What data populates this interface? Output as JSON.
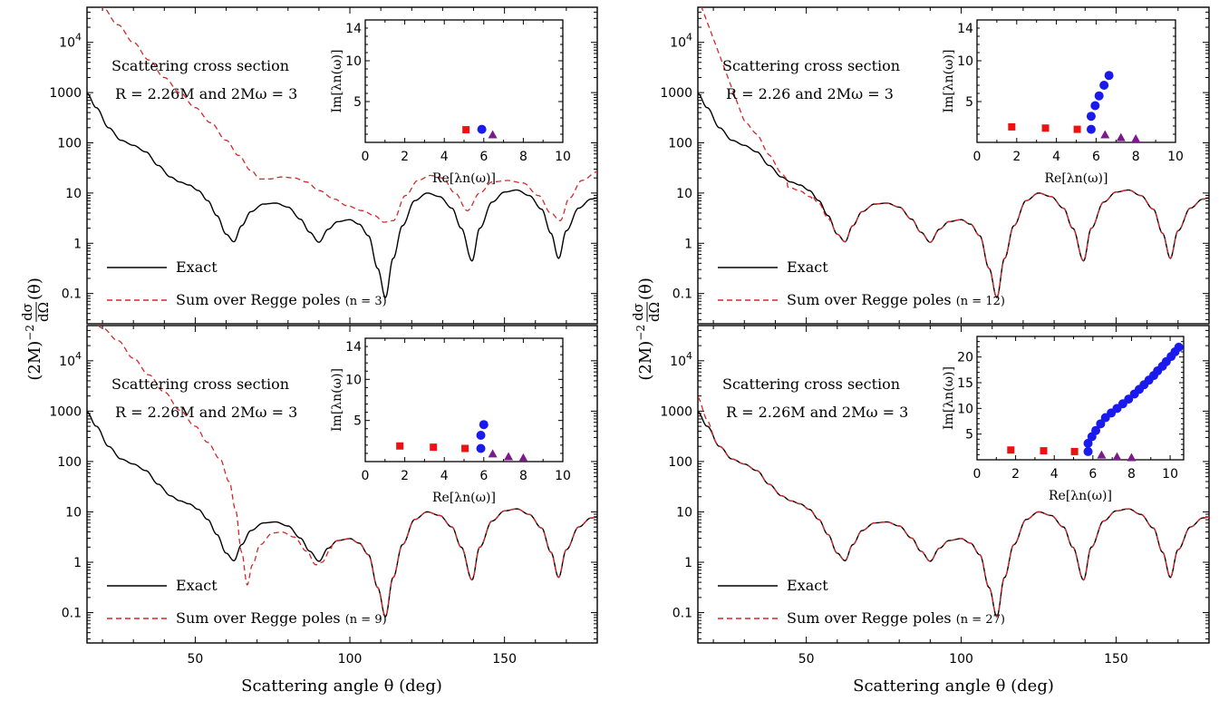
{
  "figure": {
    "xlabel": "Scattering angle θ (deg)",
    "ylabel_prefix": "(2M)",
    "ylabel_exp": "−2",
    "ylabel_num": "dσ",
    "ylabel_den": "dΩ",
    "ylabel_suffix": "(θ)"
  },
  "chart_data": [
    {
      "type": "line",
      "annotation_line1": "Scattering cross section",
      "annotation_line2": "R = 2.26M and 2Mω = 3",
      "x_range": [
        15,
        180
      ],
      "y_range": [
        0.025,
        50000
      ],
      "y_scale": "log",
      "x_ticks": [
        50,
        100,
        150
      ],
      "y_ticks": [
        "0.1",
        "1",
        "10",
        "100",
        "1000",
        "10^4"
      ],
      "legend_position": "bottom-left",
      "series": [
        {
          "name": "Exact",
          "style": "solid",
          "color": "#000000"
        },
        {
          "name": "Sum over Regge poles (n = 3)",
          "style": "dashed",
          "color": "#d62728",
          "regge_n": 3
        }
      ],
      "inset": {
        "type": "scatter",
        "xlabel": "Re[λn(ω)]",
        "ylabel": "Im[λn(ω)]",
        "x_range": [
          0,
          10
        ],
        "y_range": [
          0,
          15
        ],
        "x_ticks": [
          0,
          2,
          4,
          6,
          8,
          10
        ],
        "y_ticks": [
          5,
          10,
          14
        ],
        "series": [
          {
            "marker": "square",
            "color": "#ee1111",
            "points": [
              [
                5.1,
                1.55
              ]
            ]
          },
          {
            "marker": "circle",
            "color": "#1a1aee",
            "points": [
              [
                5.9,
                1.6
              ]
            ]
          },
          {
            "marker": "triangle",
            "color": "#7b1a8a",
            "points": [
              [
                6.45,
                0.95
              ]
            ]
          }
        ]
      }
    },
    {
      "type": "line",
      "annotation_line1": "Scattering cross section",
      "annotation_line2": "R = 2.26 and 2Mω = 3",
      "x_range": [
        15,
        180
      ],
      "y_range": [
        0.025,
        50000
      ],
      "y_scale": "log",
      "x_ticks": [
        50,
        100,
        150
      ],
      "y_ticks": [
        "0.1",
        "1",
        "10",
        "100",
        "1000",
        "10^4"
      ],
      "legend_position": "bottom-left",
      "series": [
        {
          "name": "Exact",
          "style": "solid",
          "color": "#000000"
        },
        {
          "name": "Sum over Regge poles (n = 12)",
          "style": "dashed",
          "color": "#d62728",
          "regge_n": 12
        }
      ],
      "inset": {
        "type": "scatter",
        "xlabel": "Re[λn(ω)]",
        "ylabel": "Im[λn(ω)]",
        "x_range": [
          0,
          10
        ],
        "y_range": [
          0,
          15
        ],
        "x_ticks": [
          0,
          2,
          4,
          6,
          8,
          10
        ],
        "y_ticks": [
          5,
          10,
          14
        ],
        "series": [
          {
            "marker": "square",
            "color": "#ee1111",
            "points": [
              [
                1.75,
                1.9
              ],
              [
                3.45,
                1.75
              ],
              [
                5.05,
                1.6
              ]
            ]
          },
          {
            "marker": "circle",
            "color": "#1a1aee",
            "points": [
              [
                5.75,
                1.6
              ],
              [
                5.75,
                3.2
              ],
              [
                5.95,
                4.5
              ],
              [
                6.15,
                5.7
              ],
              [
                6.4,
                7.0
              ],
              [
                6.65,
                8.2
              ]
            ]
          },
          {
            "marker": "triangle",
            "color": "#7b1a8a",
            "points": [
              [
                6.45,
                0.95
              ],
              [
                7.25,
                0.6
              ],
              [
                8.0,
                0.45
              ]
            ]
          }
        ]
      }
    },
    {
      "type": "line",
      "annotation_line1": "Scattering cross section",
      "annotation_line2": "R = 2.26M and 2Mω = 3",
      "x_range": [
        15,
        180
      ],
      "y_range": [
        0.025,
        50000
      ],
      "y_scale": "log",
      "x_ticks": [
        50,
        100,
        150
      ],
      "y_ticks": [
        "0.1",
        "1",
        "10",
        "100",
        "1000",
        "10^4"
      ],
      "legend_position": "bottom-left",
      "series": [
        {
          "name": "Exact",
          "style": "solid",
          "color": "#000000"
        },
        {
          "name": "Sum over Regge poles (n = 9)",
          "style": "dashed",
          "color": "#d62728",
          "regge_n": 9
        }
      ],
      "inset": {
        "type": "scatter",
        "xlabel": "Re[λn(ω)]",
        "ylabel": "Im[λn(ω)]",
        "x_range": [
          0,
          10
        ],
        "y_range": [
          0,
          15
        ],
        "x_ticks": [
          0,
          2,
          4,
          6,
          8,
          10
        ],
        "y_ticks": [
          5,
          10,
          14
        ],
        "series": [
          {
            "marker": "square",
            "color": "#ee1111",
            "points": [
              [
                1.75,
                1.9
              ],
              [
                3.45,
                1.75
              ],
              [
                5.05,
                1.6
              ]
            ]
          },
          {
            "marker": "circle",
            "color": "#1a1aee",
            "points": [
              [
                5.85,
                1.6
              ],
              [
                5.85,
                3.2
              ],
              [
                6.0,
                4.5
              ]
            ]
          },
          {
            "marker": "triangle",
            "color": "#7b1a8a",
            "points": [
              [
                6.45,
                0.95
              ],
              [
                7.25,
                0.6
              ],
              [
                8.0,
                0.45
              ]
            ]
          }
        ]
      }
    },
    {
      "type": "line",
      "annotation_line1": "Scattering cross section",
      "annotation_line2": "R = 2.26M and 2Mω = 3",
      "x_range": [
        15,
        180
      ],
      "y_range": [
        0.025,
        50000
      ],
      "y_scale": "log",
      "x_ticks": [
        50,
        100,
        150
      ],
      "y_ticks": [
        "0.1",
        "1",
        "10",
        "100",
        "1000",
        "10^4"
      ],
      "legend_position": "bottom-left",
      "series": [
        {
          "name": "Exact",
          "style": "solid",
          "color": "#000000"
        },
        {
          "name": "Sum over Regge poles (n = 27)",
          "style": "dashed",
          "color": "#d62728",
          "regge_n": 27
        }
      ],
      "inset": {
        "type": "scatter",
        "xlabel": "Re[λn(ω)]",
        "ylabel": "Im[λn(ω)]",
        "x_range": [
          0,
          10.7
        ],
        "y_range": [
          0,
          24
        ],
        "x_ticks": [
          0,
          2,
          4,
          6,
          8,
          10
        ],
        "y_ticks": [
          5,
          10,
          15,
          20
        ],
        "series": [
          {
            "marker": "square",
            "color": "#ee1111",
            "points": [
              [
                1.75,
                1.9
              ],
              [
                3.45,
                1.75
              ],
              [
                5.05,
                1.6
              ]
            ]
          },
          {
            "marker": "circle",
            "color": "#1a1aee",
            "points": [
              [
                5.75,
                1.6
              ],
              [
                5.75,
                3.2
              ],
              [
                5.95,
                4.5
              ],
              [
                6.15,
                5.7
              ],
              [
                6.4,
                7.0
              ],
              [
                6.65,
                8.2
              ],
              [
                6.95,
                9.1
              ],
              [
                7.25,
                10.0
              ],
              [
                7.55,
                10.9
              ],
              [
                7.85,
                11.8
              ],
              [
                8.15,
                12.8
              ],
              [
                8.4,
                13.7
              ],
              [
                8.65,
                14.6
              ],
              [
                8.9,
                15.5
              ],
              [
                9.15,
                16.4
              ],
              [
                9.35,
                17.3
              ],
              [
                9.6,
                18.2
              ],
              [
                9.8,
                19.1
              ],
              [
                10.05,
                20.1
              ],
              [
                10.25,
                21.0
              ],
              [
                10.45,
                21.9
              ]
            ]
          },
          {
            "marker": "triangle",
            "color": "#7b1a8a",
            "points": [
              [
                6.45,
                0.95
              ],
              [
                7.25,
                0.6
              ],
              [
                8.0,
                0.45
              ]
            ]
          }
        ]
      }
    }
  ]
}
